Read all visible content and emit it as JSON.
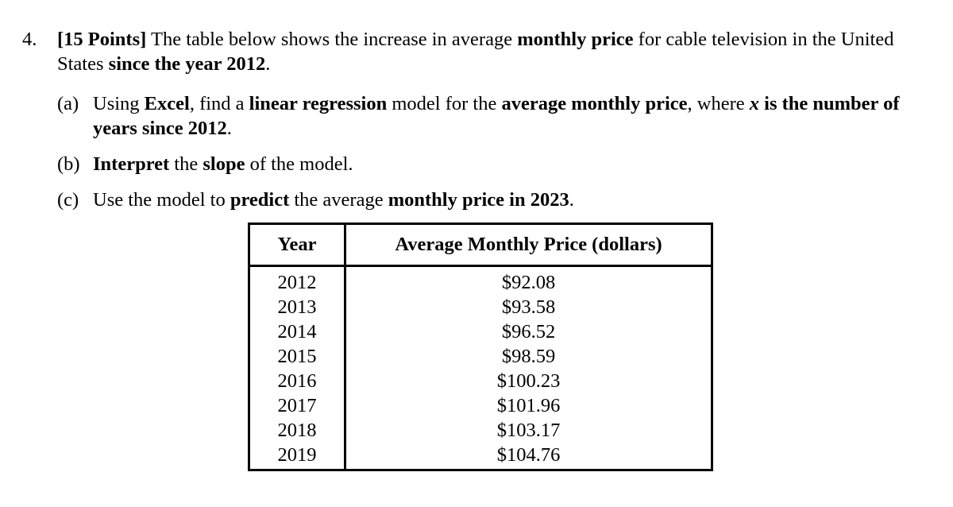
{
  "question": {
    "number": "4.",
    "points": "[15 Points]",
    "t1": " The table below shows the increase in average ",
    "b1": "monthly price",
    "t2": " for cable television in the United States ",
    "b2": "since the year 2012",
    "t3": "."
  },
  "parts": {
    "a": {
      "label": "(a)",
      "t1": "Using ",
      "b1": "Excel",
      "t2": ", find a ",
      "b2": "linear regression",
      "t3": " model for the ",
      "b3": "average monthly price",
      "t4": ", where ",
      "bi": "x",
      "b4": " is the number of years since 2012",
      "t5": "."
    },
    "b": {
      "label": "(b)",
      "b1": "Interpret",
      "t1": " the ",
      "b2": "slope",
      "t2": " of the model."
    },
    "c": {
      "label": "(c)",
      "t1": "Use the model to ",
      "b1": "predict",
      "t2": " the average ",
      "b2": "monthly price in 2023",
      "t3": "."
    }
  },
  "table": {
    "headers": [
      "Year",
      "Average Monthly Price (dollars)"
    ],
    "rows": [
      [
        "2012",
        "$92.08"
      ],
      [
        "2013",
        "$93.58"
      ],
      [
        "2014",
        "$96.52"
      ],
      [
        "2015",
        "$98.59"
      ],
      [
        "2016",
        "$100.23"
      ],
      [
        "2017",
        "$101.96"
      ],
      [
        "2018",
        "$103.17"
      ],
      [
        "2019",
        "$104.76"
      ]
    ]
  }
}
